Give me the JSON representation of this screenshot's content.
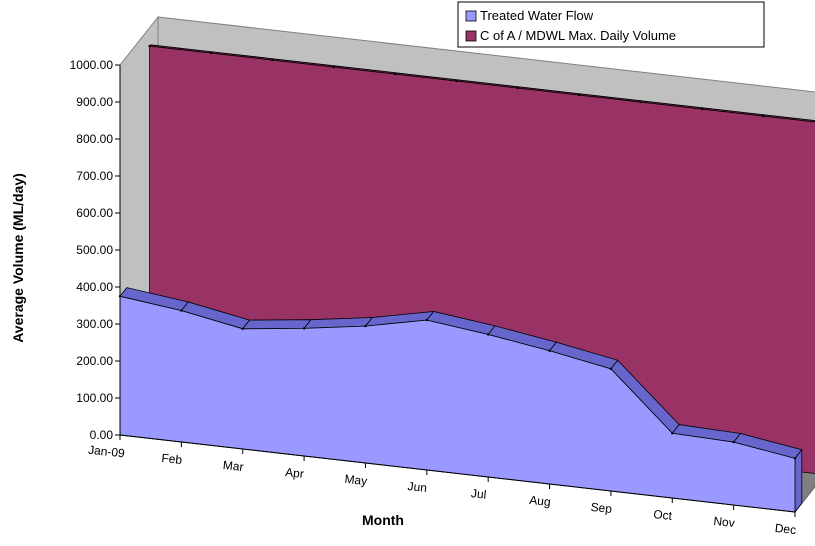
{
  "chart_data": {
    "type": "area",
    "title": "",
    "xlabel": "Month",
    "ylabel": "Average Volume (ML/day)",
    "categories": [
      "Jan-09",
      "Feb",
      "Mar",
      "Apr",
      "May",
      "Jun",
      "Jul",
      "Aug",
      "Sep",
      "Oct",
      "Nov",
      "Dec"
    ],
    "ylim": [
      0,
      1000
    ],
    "yticks": [
      "0.00",
      "100.00",
      "200.00",
      "300.00",
      "400.00",
      "500.00",
      "600.00",
      "700.00",
      "800.00",
      "900.00",
      "1000.00"
    ],
    "series": [
      {
        "name": "Treated Water Flow",
        "color": "#9999ff",
        "values": [
          375,
          355,
          325,
          345,
          370,
          405,
          385,
          360,
          330,
          175,
          170,
          145
        ]
      },
      {
        "name": "C of A / MDWL Max. Daily Volume",
        "color": "#993366",
        "values": [
          950,
          950,
          950,
          950,
          950,
          950,
          950,
          950,
          950,
          950,
          950,
          950
        ]
      }
    ],
    "legend_position": "top-right",
    "grid": false,
    "style": "3d"
  }
}
